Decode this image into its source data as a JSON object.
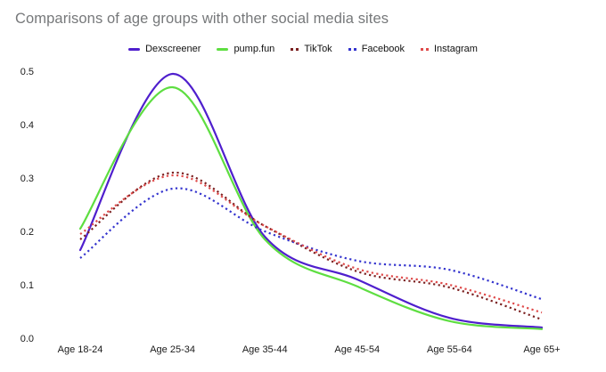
{
  "page": {
    "background": "#ffffff",
    "title_color": "#76787a",
    "tick_label_color": "#1a1a1a"
  },
  "chart_data": {
    "type": "line",
    "title": "Comparisons of age groups with other social media sites",
    "xlabel": "",
    "ylabel": "",
    "categories": [
      "Age 18-24",
      "Age 25-34",
      "Age 35-44",
      "Age 45-54",
      "Age 55-64",
      "Age 65+"
    ],
    "yticks": [
      "0.0",
      "0.1",
      "0.2",
      "0.3",
      "0.4",
      "0.5"
    ],
    "ylim": [
      0,
      0.5
    ],
    "grid": false,
    "legend_position": "top-center",
    "series": [
      {
        "name": "Dexscreener",
        "style": "solid",
        "color": "#4f1fcd",
        "values": [
          0.165,
          0.495,
          0.19,
          0.11,
          0.038,
          0.02
        ]
      },
      {
        "name": "pump.fun",
        "style": "solid",
        "color": "#5ede41",
        "values": [
          0.205,
          0.47,
          0.185,
          0.097,
          0.032,
          0.017
        ]
      },
      {
        "name": "TikTok",
        "style": "dotted",
        "color": "#7b2020",
        "values": [
          0.185,
          0.31,
          0.21,
          0.125,
          0.095,
          0.035
        ]
      },
      {
        "name": "Facebook",
        "style": "dotted",
        "color": "#3434ce",
        "values": [
          0.15,
          0.28,
          0.2,
          0.145,
          0.128,
          0.073
        ]
      },
      {
        "name": "Instagram",
        "style": "dotted",
        "color": "#df4a4a",
        "values": [
          0.195,
          0.305,
          0.21,
          0.13,
          0.1,
          0.048
        ]
      }
    ]
  }
}
